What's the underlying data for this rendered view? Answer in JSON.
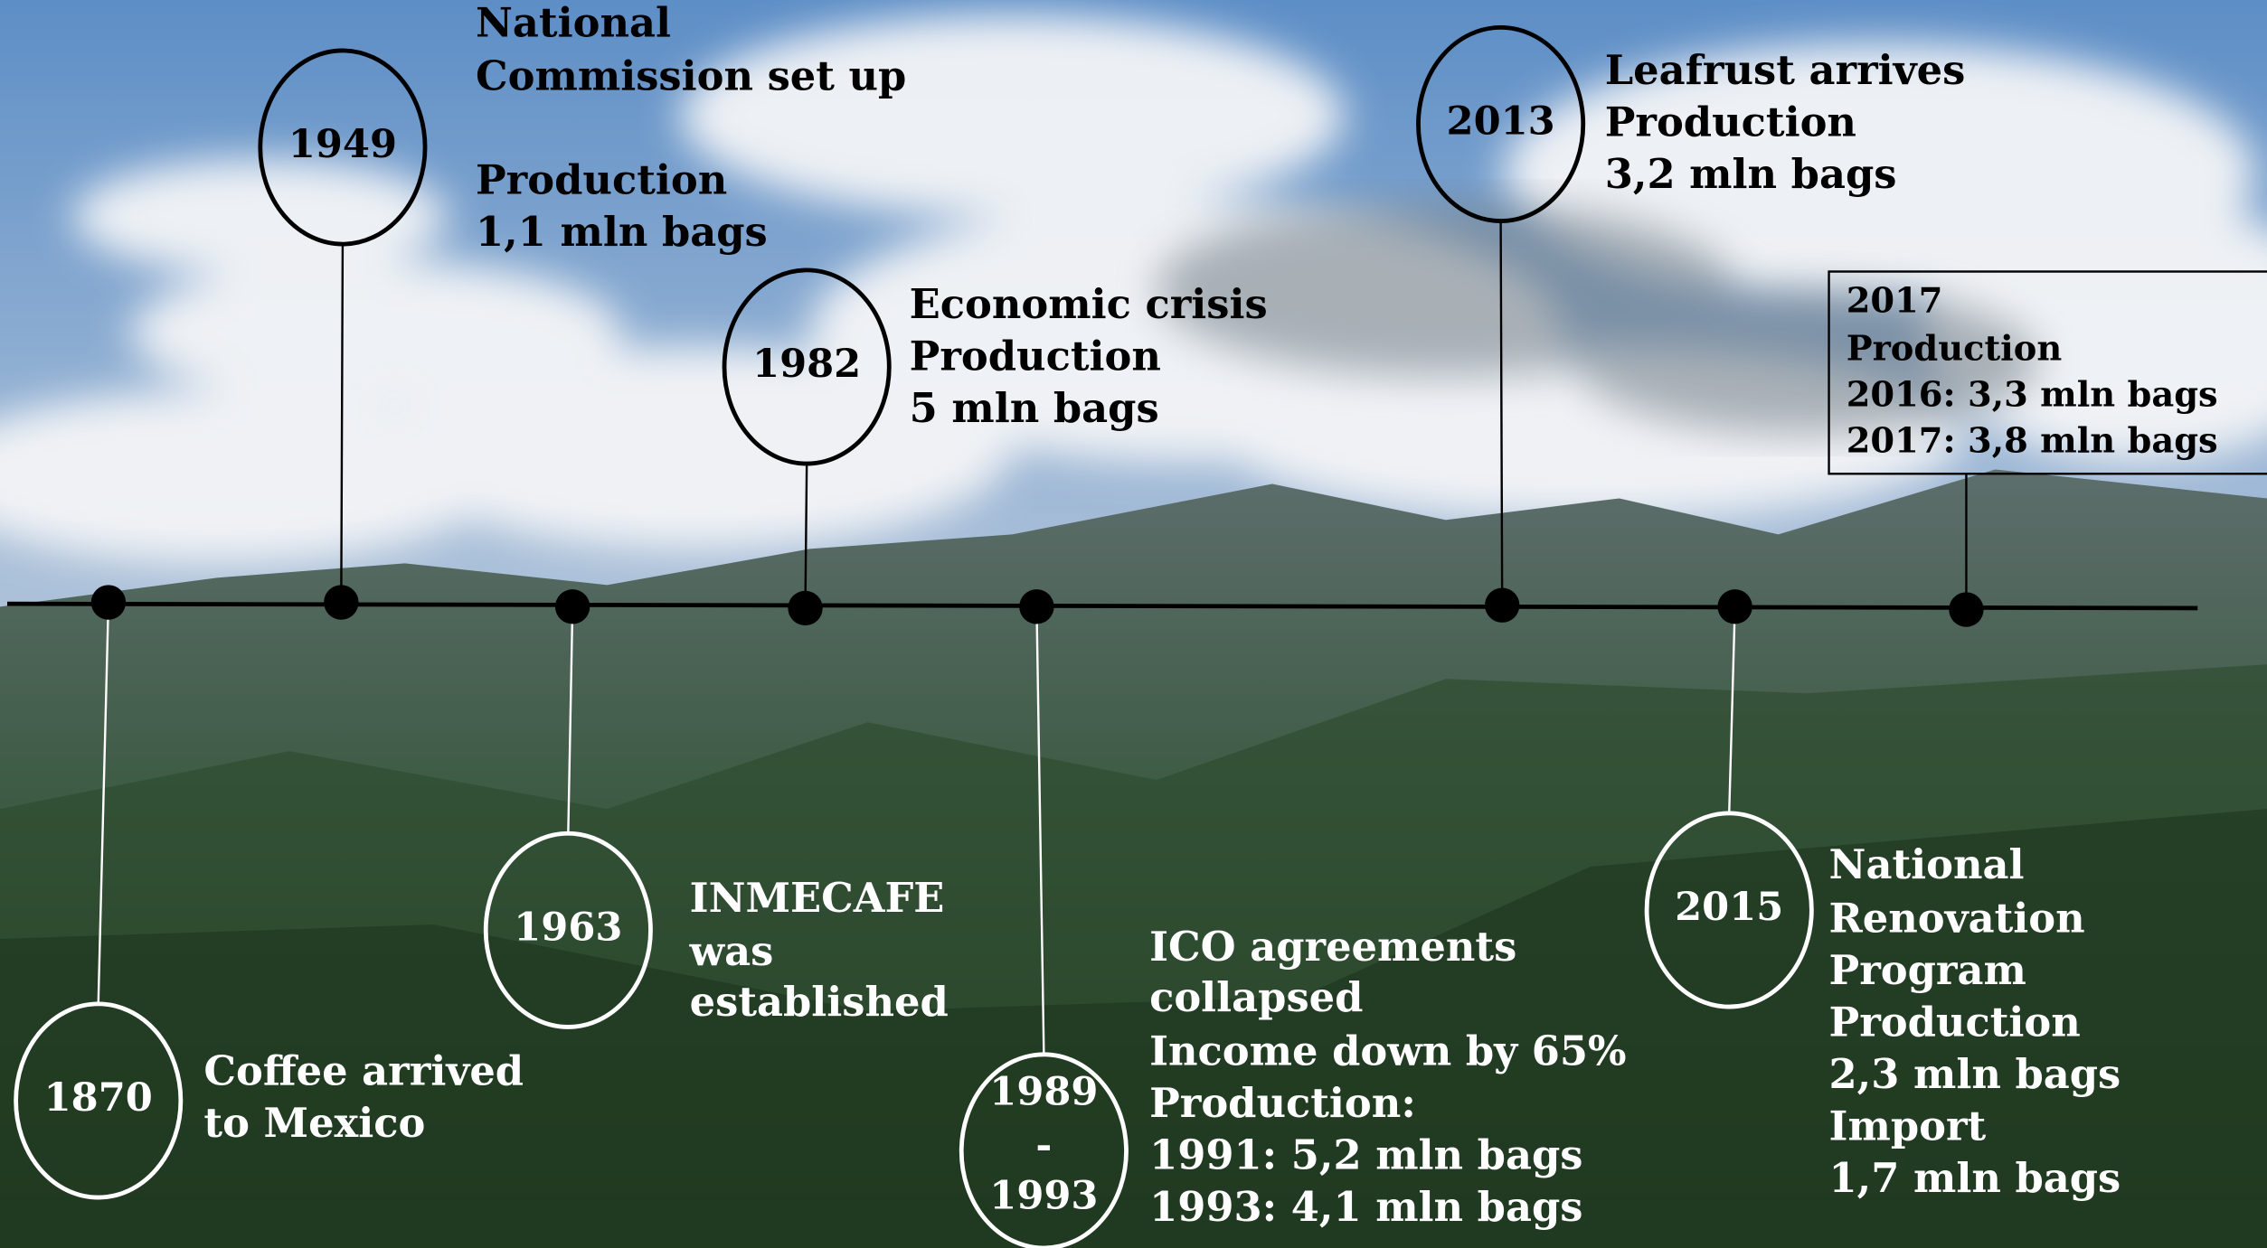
{
  "events": [
    {
      "year": "1870",
      "lines": [
        "Coffee arrived",
        "to Mexico"
      ]
    },
    {
      "year": "1949",
      "lines": [
        "National",
        "Commission set up",
        "Production",
        "1,1 mln bags"
      ]
    },
    {
      "year": "1963",
      "lines": [
        "INMECAFE",
        "was",
        "established"
      ]
    },
    {
      "year": "1982",
      "lines": [
        "Economic crisis",
        "Production",
        "5 mln bags"
      ]
    },
    {
      "year": [
        "1989",
        "-",
        "1993"
      ],
      "lines": [
        "ICO agreements",
        "collapsed",
        "Income down by 65%",
        "Production:",
        "1991: 5,2 mln bags",
        "1993: 4,1 mln bags"
      ]
    },
    {
      "year": "2013",
      "lines": [
        "Leafrust arrives",
        "Production",
        "3,2 mln bags"
      ]
    },
    {
      "year": "2015",
      "lines": [
        "National",
        "Renovation",
        "Program",
        "Production",
        "2,3 mln bags",
        "Import",
        "1,7 mln bags"
      ]
    },
    {
      "year": "2017",
      "lines": [
        "Production",
        "2016: 3,3 mln bags",
        "2017: 3,8 mln bags"
      ]
    }
  ]
}
